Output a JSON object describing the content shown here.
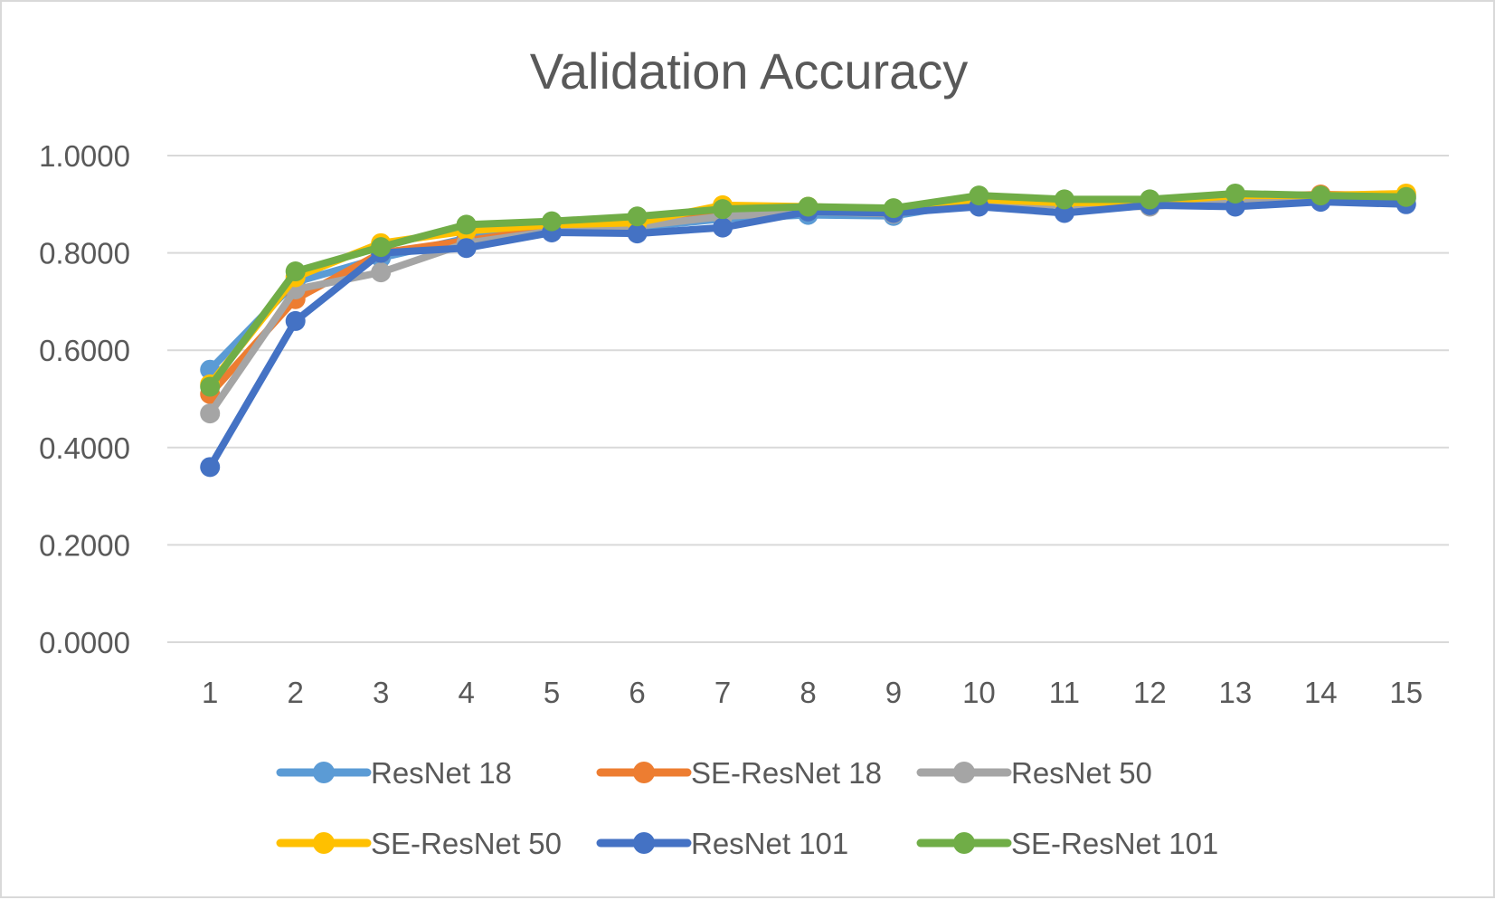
{
  "chart_data": {
    "type": "line",
    "title": "Validation Accuracy",
    "xlabel": "",
    "ylabel": "",
    "ylim": [
      0,
      1
    ],
    "y_ticks": [
      "0.0000",
      "0.2000",
      "0.4000",
      "0.6000",
      "0.8000",
      "1.0000"
    ],
    "y_tick_values": [
      0,
      0.2,
      0.4,
      0.6,
      0.8,
      1.0
    ],
    "categories": [
      "1",
      "2",
      "3",
      "4",
      "5",
      "6",
      "7",
      "8",
      "9",
      "10",
      "11",
      "12",
      "13",
      "14",
      "15"
    ],
    "grid": "horizontal",
    "legend_position": "bottom",
    "series": [
      {
        "name": "ResNet 18",
        "color": "#5b9bd5",
        "values": [
          0.56,
          0.74,
          0.79,
          0.83,
          0.848,
          0.852,
          0.87,
          0.878,
          0.876,
          0.905,
          0.898,
          0.902,
          0.905,
          0.912,
          0.912
        ]
      },
      {
        "name": "SE-ResNet 18",
        "color": "#ed7d31",
        "values": [
          0.51,
          0.705,
          0.8,
          0.825,
          0.85,
          0.858,
          0.88,
          0.89,
          0.886,
          0.91,
          0.9,
          0.905,
          0.915,
          0.92,
          0.918
        ]
      },
      {
        "name": "ResNet 50",
        "color": "#a5a5a5",
        "values": [
          0.47,
          0.725,
          0.76,
          0.82,
          0.845,
          0.855,
          0.875,
          0.885,
          0.88,
          0.905,
          0.898,
          0.895,
          0.91,
          0.915,
          0.912
        ]
      },
      {
        "name": "SE-ResNet 50",
        "color": "#ffc000",
        "values": [
          0.53,
          0.75,
          0.82,
          0.845,
          0.858,
          0.862,
          0.898,
          0.895,
          0.89,
          0.91,
          0.903,
          0.905,
          0.918,
          0.918,
          0.922
        ]
      },
      {
        "name": "ResNet 101",
        "color": "#4472c4",
        "values": [
          0.36,
          0.66,
          0.8,
          0.81,
          0.842,
          0.84,
          0.852,
          0.885,
          0.882,
          0.895,
          0.882,
          0.898,
          0.895,
          0.905,
          0.9
        ]
      },
      {
        "name": "SE-ResNet 101",
        "color": "#70ad47",
        "values": [
          0.525,
          0.762,
          0.812,
          0.858,
          0.865,
          0.875,
          0.89,
          0.895,
          0.892,
          0.918,
          0.91,
          0.91,
          0.922,
          0.918,
          0.915
        ]
      }
    ]
  }
}
